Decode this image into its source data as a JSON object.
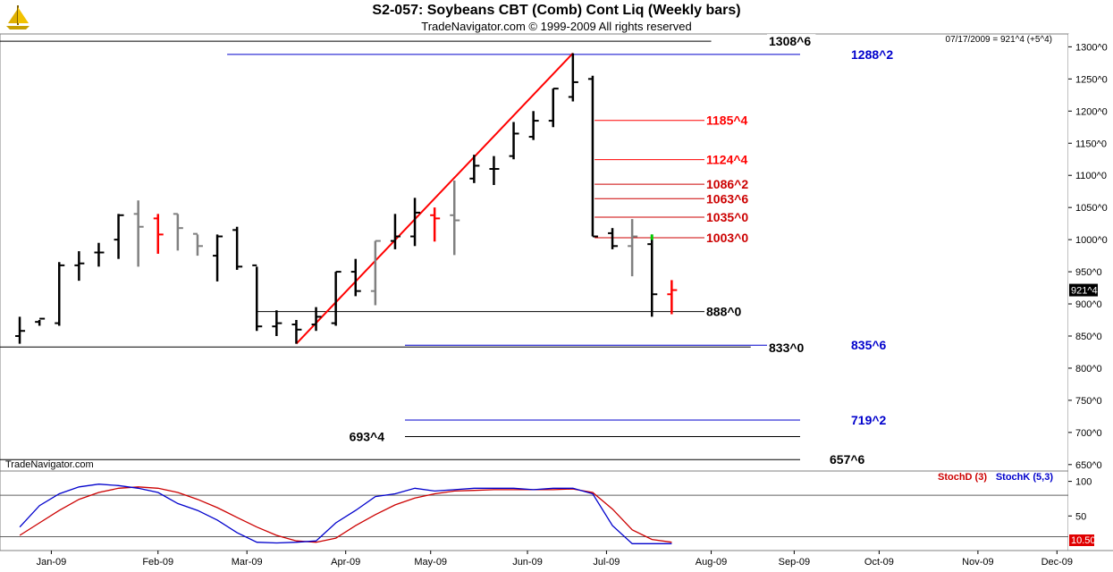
{
  "header": {
    "title": "S2-057:  Soybeans CBT (Comb) Cont Liq  (Weekly bars)",
    "copyright": "TradeNavigator.com © 1999-2009 All rights reserved",
    "quote": "07/17/2009 = 921^4 (+5^4)",
    "watermark": "TradeNavigator.com",
    "logo_icon": "sailboat-logo-icon"
  },
  "colors": {
    "up_bar": "#000000",
    "down_bar": "#808080",
    "last_bar": "#ff0000",
    "trendline": "#ff0000",
    "fib_level": "#ff0000",
    "blue_level": "#0000cc",
    "stoch_d": "#cc0000",
    "stoch_k": "#0000cc"
  },
  "chart_data": [
    {
      "type": "ohlc",
      "title": "S2-057:  Soybeans CBT (Comb) Cont Liq  (Weekly bars)",
      "ylim": [
        640,
        1320
      ],
      "y_ticks": [
        "650^0",
        "700^0",
        "750^0",
        "800^0",
        "850^0",
        "900^0",
        "950^0",
        "1000^0",
        "1050^0",
        "1100^0",
        "1150^0",
        "1200^0",
        "1250^0",
        "1300^0"
      ],
      "y_tick_values": [
        650,
        700,
        750,
        800,
        850,
        900,
        950,
        1000,
        1050,
        1100,
        1150,
        1200,
        1250,
        1300
      ],
      "x_ticks": [
        "Jan-09",
        "Feb-09",
        "Mar-09",
        "Apr-09",
        "May-09",
        "Jun-09",
        "Jul-09",
        "Aug-09",
        "Sep-09",
        "Oct-09",
        "Nov-09",
        "Dec-09"
      ],
      "x_tick_weeks": [
        2.1,
        7.5,
        12,
        17,
        21.3,
        26.2,
        30.2,
        35.5,
        39.7,
        44,
        49,
        53
      ],
      "last_price_label": "921^4",
      "last_price": 921.5,
      "bars": [
        {
          "w": 0.5,
          "o": 850,
          "h": 880,
          "l": 838,
          "c": 858,
          "s": "up"
        },
        {
          "w": 1.5,
          "o": 872,
          "h": 875,
          "l": 866,
          "c": 877,
          "s": "up"
        },
        {
          "w": 2.5,
          "o": 870,
          "h": 965,
          "l": 866,
          "c": 960,
          "s": "up"
        },
        {
          "w": 3.5,
          "o": 960,
          "h": 982,
          "l": 936,
          "c": 963,
          "s": "up"
        },
        {
          "w": 4.5,
          "o": 980,
          "h": 995,
          "l": 958,
          "c": 980,
          "s": "up"
        },
        {
          "w": 5.5,
          "o": 1000,
          "h": 1040,
          "l": 970,
          "c": 1038,
          "s": "up"
        },
        {
          "w": 6.5,
          "o": 1040,
          "h": 1061,
          "l": 958,
          "c": 1020,
          "s": "down"
        },
        {
          "w": 7.5,
          "o": 1033,
          "h": 1040,
          "l": 978,
          "c": 1008,
          "s": "last"
        },
        {
          "w": 8.5,
          "o": 1040,
          "h": 1040,
          "l": 983,
          "c": 1018,
          "s": "down"
        },
        {
          "w": 9.5,
          "o": 1009,
          "h": 1008,
          "l": 975,
          "c": 990,
          "s": "down"
        },
        {
          "w": 10.5,
          "o": 975,
          "h": 1008,
          "l": 935,
          "c": 1005,
          "s": "up"
        },
        {
          "w": 11.5,
          "o": 1015,
          "h": 1020,
          "l": 953,
          "c": 958,
          "s": "up"
        },
        {
          "w": 12.5,
          "o": 960,
          "h": 958,
          "l": 858,
          "c": 865,
          "s": "up"
        },
        {
          "w": 13.5,
          "o": 865,
          "h": 890,
          "l": 850,
          "c": 870,
          "s": "up"
        },
        {
          "w": 14.5,
          "o": 868,
          "h": 875,
          "l": 838,
          "c": 860,
          "s": "up"
        },
        {
          "w": 15.5,
          "o": 868,
          "h": 895,
          "l": 858,
          "c": 880,
          "s": "up"
        },
        {
          "w": 16.5,
          "o": 870,
          "h": 950,
          "l": 866,
          "c": 950,
          "s": "up"
        },
        {
          "w": 17.5,
          "o": 950,
          "h": 970,
          "l": 912,
          "c": 920,
          "s": "up"
        },
        {
          "w": 18.5,
          "o": 920,
          "h": 998,
          "l": 898,
          "c": 998,
          "s": "down"
        },
        {
          "w": 19.5,
          "o": 998,
          "h": 1040,
          "l": 985,
          "c": 1005,
          "s": "up"
        },
        {
          "w": 20.5,
          "o": 1005,
          "h": 1065,
          "l": 990,
          "c": 1042,
          "s": "up"
        },
        {
          "w": 21.5,
          "o": 1038,
          "h": 1050,
          "l": 997,
          "c": 1033,
          "s": "last"
        },
        {
          "w": 22.5,
          "o": 1038,
          "h": 1092,
          "l": 976,
          "c": 1030,
          "s": "down"
        },
        {
          "w": 23.5,
          "o": 1095,
          "h": 1132,
          "l": 1088,
          "c": 1115,
          "s": "up"
        },
        {
          "w": 24.5,
          "o": 1110,
          "h": 1130,
          "l": 1085,
          "c": 1110,
          "s": "up"
        },
        {
          "w": 25.5,
          "o": 1130,
          "h": 1183,
          "l": 1125,
          "c": 1165,
          "s": "up"
        },
        {
          "w": 26.5,
          "o": 1160,
          "h": 1200,
          "l": 1155,
          "c": 1185,
          "s": "up"
        },
        {
          "w": 27.5,
          "o": 1185,
          "h": 1235,
          "l": 1175,
          "c": 1235,
          "s": "up"
        },
        {
          "w": 28.5,
          "o": 1222,
          "h": 1290,
          "l": 1215,
          "c": 1245,
          "s": "up"
        },
        {
          "w": 29.5,
          "o": 1250,
          "h": 1255,
          "l": 1005,
          "c": 1005,
          "s": "up"
        },
        {
          "w": 30.5,
          "o": 1010,
          "h": 1018,
          "l": 985,
          "c": 990,
          "s": "up"
        },
        {
          "w": 31.5,
          "o": 990,
          "h": 1032,
          "l": 943,
          "c": 1005,
          "s": "down"
        },
        {
          "w": 32.5,
          "o": 993,
          "h": 1008,
          "l": 880,
          "c": 915,
          "s": "up"
        },
        {
          "w": 33.5,
          "o": 915,
          "h": 937,
          "l": 884,
          "c": 921.5,
          "s": "last"
        }
      ],
      "trendlines": [
        {
          "w1": 14.5,
          "p1": 838,
          "w2": 28.5,
          "p2": 1290
        }
      ],
      "levels": [
        {
          "label": "1308^6",
          "value": 1308.75,
          "color": "#000000",
          "w1": -1,
          "w2": 35.5
        },
        {
          "label": "1288^2",
          "value": 1288.25,
          "color": "#0000cc",
          "w1": 11,
          "w2": 40
        },
        {
          "label": "1185^4",
          "value": 1185.5,
          "color": "#ff0000",
          "w1": 29.6,
          "w2": 35.5
        },
        {
          "label": "1124^4",
          "value": 1124.5,
          "color": "#ff0000",
          "w1": 29.6,
          "w2": 35.5
        },
        {
          "label": "1086^2",
          "value": 1086.25,
          "color": "#cc0000",
          "w1": 29.6,
          "w2": 35.5
        },
        {
          "label": "1063^6",
          "value": 1063.75,
          "color": "#cc0000",
          "w1": 29.6,
          "w2": 35.5
        },
        {
          "label": "1035^0",
          "value": 1035,
          "color": "#cc0000",
          "w1": 29.6,
          "w2": 35.5
        },
        {
          "label": "1003^0",
          "value": 1003,
          "color": "#cc0000",
          "w1": 29.6,
          "w2": 35.5
        },
        {
          "label": "888^0",
          "value": 888,
          "color": "#000000",
          "w1": 12.5,
          "w2": 35.5
        },
        {
          "label": "835^6",
          "value": 835.75,
          "color": "#0000cc",
          "w1": 20,
          "w2": 40
        },
        {
          "label": "833^0",
          "value": 833,
          "color": "#000000",
          "w1": -1,
          "w2": 37.5
        },
        {
          "label": "719^2",
          "value": 719.25,
          "color": "#0000cc",
          "w1": 20,
          "w2": 40
        },
        {
          "label": "693^4",
          "value": 693.5,
          "color": "#000000",
          "w1": 20,
          "w2": 40
        },
        {
          "label": "657^6",
          "value": 657.75,
          "color": "#000000",
          "w1": -1,
          "w2": 40
        }
      ]
    },
    {
      "type": "line",
      "ylim": [
        0,
        115
      ],
      "y_ticks": [
        "50",
        "100"
      ],
      "y_tick_values": [
        50,
        100
      ],
      "ref_lines": [
        80,
        20
      ],
      "last_value_label": "10.50",
      "series": [
        {
          "name": "StochD (3)",
          "color": "#cc0000",
          "x": [
            0.5,
            1.5,
            2.5,
            3.5,
            4.5,
            5.5,
            6.5,
            7.5,
            8.5,
            9.5,
            10.5,
            11.5,
            12.5,
            13.5,
            14.5,
            15.5,
            16.5,
            17.5,
            18.5,
            19.5,
            20.5,
            21.5,
            22.5,
            23.5,
            24.5,
            25.5,
            26.5,
            27.5,
            28.5,
            29.5,
            30.5,
            31.5,
            32.5,
            33.5
          ],
          "values": [
            22,
            40,
            58,
            74,
            84,
            90,
            92,
            90,
            84,
            74,
            62,
            48,
            34,
            22,
            14,
            12,
            18,
            36,
            52,
            66,
            76,
            82,
            86,
            87,
            88,
            88,
            88,
            88,
            89,
            84,
            60,
            30,
            16,
            12
          ]
        },
        {
          "name": "StochK (5,3)",
          "color": "#0000cc",
          "x": [
            0.5,
            1.5,
            2.5,
            3.5,
            4.5,
            5.5,
            6.5,
            7.5,
            8.5,
            9.5,
            10.5,
            11.5,
            12.5,
            13.5,
            14.5,
            15.5,
            16.5,
            17.5,
            18.5,
            19.5,
            20.5,
            21.5,
            22.5,
            23.5,
            24.5,
            25.5,
            26.5,
            27.5,
            28.5,
            29.5,
            30.5,
            31.5,
            32.5,
            33.5
          ],
          "values": [
            34,
            65,
            82,
            92,
            96,
            94,
            90,
            84,
            68,
            58,
            44,
            26,
            12,
            11,
            12,
            14,
            40,
            58,
            78,
            82,
            90,
            86,
            88,
            90,
            90,
            90,
            88,
            90,
            90,
            82,
            36,
            10,
            10,
            10
          ]
        }
      ]
    }
  ]
}
